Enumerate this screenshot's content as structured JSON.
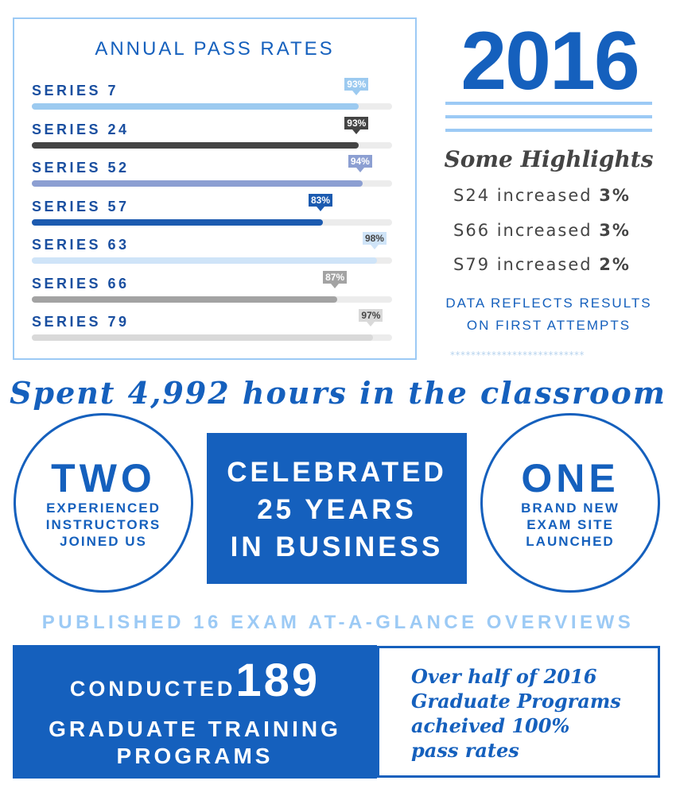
{
  "chart_data": {
    "type": "bar",
    "orientation": "horizontal",
    "title": "ANNUAL PASS RATES",
    "categories": [
      "SERIES 7",
      "SERIES 24",
      "SERIES 52",
      "SERIES 57",
      "SERIES 63",
      "SERIES 66",
      "SERIES 79"
    ],
    "values": [
      93,
      93,
      94,
      83,
      98,
      87,
      97
    ],
    "value_labels": [
      "93%",
      "93%",
      "94%",
      "83%",
      "98%",
      "87%",
      "97%"
    ],
    "colors": [
      "#9ccaf0",
      "#444444",
      "#8c9fd2",
      "#1c5bb0",
      "#cfe4f8",
      "#a3a3a3",
      "#d9d9d9"
    ],
    "label_text_colors": [
      "#ffffff",
      "#ffffff",
      "#ffffff",
      "#ffffff",
      "#444444",
      "#ffffff",
      "#444444"
    ],
    "xlim": [
      0,
      100
    ],
    "track_color": "#ececec"
  },
  "year": "2016",
  "highlights": {
    "title": "Some Highlights",
    "items": [
      {
        "text": "S24 increased ",
        "value": "3%"
      },
      {
        "text": "S66 increased ",
        "value": "3%"
      },
      {
        "text": "S79 increased ",
        "value": "2%"
      }
    ],
    "note_line1": "DATA REFLECTS RESULTS",
    "note_line2": "ON FIRST ATTEMPTS",
    "stars": "**************************"
  },
  "spent": "Spent 4,992 hours in the classroom",
  "left_circle": {
    "big": "TWO",
    "lines": [
      "EXPERIENCED",
      "INSTRUCTORS",
      "JOINED US"
    ]
  },
  "center_box": {
    "lines": [
      "CELEBRATED",
      "25 YEARS",
      "IN BUSINESS"
    ]
  },
  "right_circle": {
    "big": "ONE",
    "lines": [
      "BRAND NEW",
      "EXAM SITE",
      "LAUNCHED"
    ]
  },
  "published": "PUBLISHED 16 EXAM AT-A-GLANCE OVERVIEWS",
  "conducted": {
    "prefix": "CONDUCTED",
    "number": "189",
    "line2": "GRADUATE TRAINING",
    "line3": "PROGRAMS"
  },
  "note_box": {
    "lines": [
      "Over half of 2016",
      "Graduate Programs",
      "acheived 100%",
      "pass rates"
    ]
  },
  "colors": {
    "primary": "#1560bd",
    "light": "#9ccaf5"
  }
}
